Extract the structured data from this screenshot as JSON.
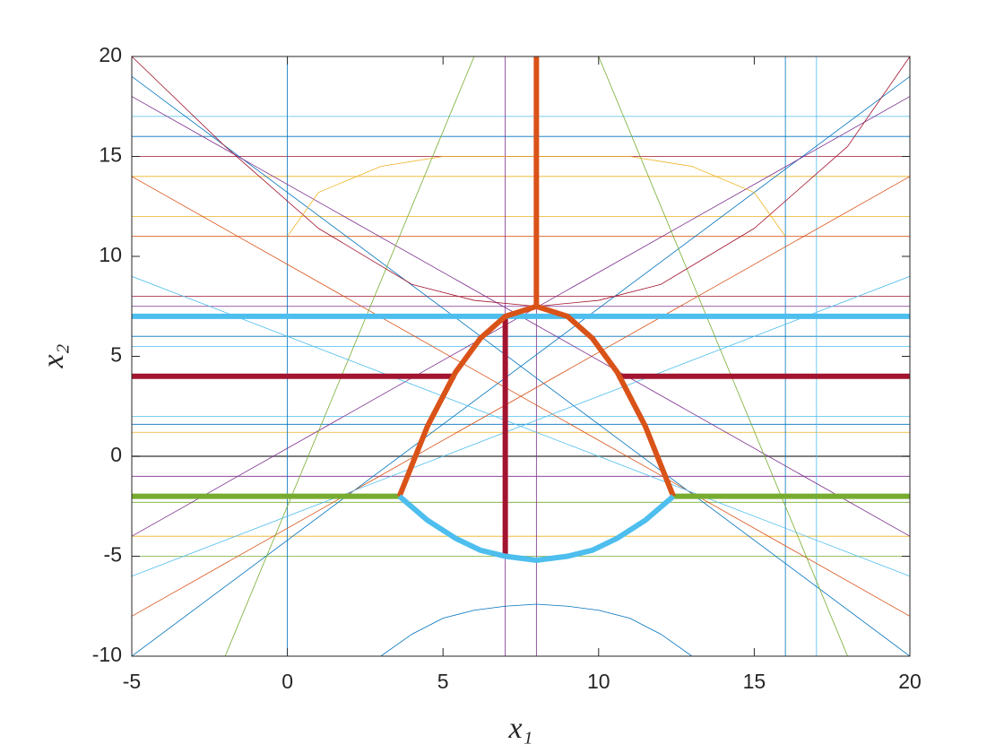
{
  "chart_data": {
    "type": "line",
    "xlabel": "x₁",
    "ylabel": "x₂",
    "xlim": [
      -5,
      20
    ],
    "ylim": [
      -10,
      20
    ],
    "xticks": [
      -5,
      0,
      5,
      10,
      15,
      20
    ],
    "yticks": [
      -10,
      -5,
      0,
      5,
      10,
      15,
      20
    ],
    "box": true,
    "series": [
      {
        "color": "#4dbeee",
        "linewidth": 0.8,
        "x": [
          -5,
          20
        ],
        "values": [
          17,
          17
        ]
      },
      {
        "color": "#0072bd",
        "linewidth": 0.8,
        "x": [
          -5,
          20
        ],
        "values": [
          16,
          16
        ]
      },
      {
        "color": "#a2142f",
        "linewidth": 0.8,
        "x": [
          -5,
          20
        ],
        "values": [
          15,
          15
        ]
      },
      {
        "color": "#edb120",
        "linewidth": 0.8,
        "x": [
          -5,
          20
        ],
        "values": [
          14,
          14
        ]
      },
      {
        "color": "#edb120",
        "linewidth": 0.8,
        "x": [
          -5,
          20
        ],
        "values": [
          12,
          12
        ]
      },
      {
        "color": "#d95319",
        "linewidth": 0.8,
        "x": [
          -5,
          20
        ],
        "values": [
          11,
          11
        ]
      },
      {
        "color": "#a2142f",
        "linewidth": 0.8,
        "x": [
          -5,
          20
        ],
        "values": [
          8,
          8
        ]
      },
      {
        "color": "#7e2f8e",
        "linewidth": 0.8,
        "x": [
          -5,
          20
        ],
        "values": [
          7.5,
          7.5
        ]
      },
      {
        "color": "#0072bd",
        "linewidth": 0.8,
        "x": [
          -5,
          20
        ],
        "values": [
          6,
          6
        ]
      },
      {
        "color": "#4dbeee",
        "linewidth": 0.8,
        "x": [
          -5,
          20
        ],
        "values": [
          5.5,
          5.5
        ]
      },
      {
        "color": "#4dbeee",
        "linewidth": 0.8,
        "x": [
          -5,
          20
        ],
        "values": [
          2,
          2
        ]
      },
      {
        "color": "#0072bd",
        "linewidth": 0.8,
        "x": [
          -5,
          20
        ],
        "values": [
          1.6,
          1.6
        ]
      },
      {
        "color": "#edb120",
        "linewidth": 0.8,
        "x": [
          -5,
          20
        ],
        "values": [
          1.2,
          1.2
        ]
      },
      {
        "color": "#555555",
        "linewidth": 1.5,
        "x": [
          -5,
          20
        ],
        "values": [
          0,
          0
        ]
      },
      {
        "color": "#7e2f8e",
        "linewidth": 0.8,
        "x": [
          -5,
          20
        ],
        "values": [
          -1,
          -1
        ]
      },
      {
        "color": "#77ac30",
        "linewidth": 0.8,
        "x": [
          -5,
          20
        ],
        "values": [
          -2.3,
          -2.3
        ]
      },
      {
        "color": "#edb120",
        "linewidth": 0.8,
        "x": [
          -5,
          20
        ],
        "values": [
          -4,
          -4
        ]
      },
      {
        "color": "#77ac30",
        "linewidth": 0.8,
        "x": [
          -5,
          20
        ],
        "values": [
          -5,
          -5
        ]
      },
      {
        "color": "#0072bd",
        "linewidth": 0.8,
        "x": [
          0,
          0
        ],
        "values": [
          -10,
          20
        ]
      },
      {
        "color": "#7e2f8e",
        "linewidth": 0.8,
        "x": [
          7,
          7
        ],
        "values": [
          -10,
          20
        ]
      },
      {
        "color": "#7e2f8e",
        "linewidth": 0.8,
        "x": [
          8,
          8
        ],
        "values": [
          -10,
          20
        ]
      },
      {
        "color": "#0072bd",
        "linewidth": 0.8,
        "x": [
          16,
          16
        ],
        "values": [
          -10,
          20
        ]
      },
      {
        "color": "#4dbeee",
        "linewidth": 0.8,
        "x": [
          17,
          17
        ],
        "values": [
          -10,
          20
        ]
      },
      {
        "color": "#0072bd",
        "linewidth": 0.8,
        "x": [
          -5,
          20
        ],
        "values": [
          19,
          -10
        ]
      },
      {
        "color": "#0072bd",
        "linewidth": 0.8,
        "x": [
          -5,
          20
        ],
        "values": [
          -10,
          19
        ]
      },
      {
        "color": "#d95319",
        "linewidth": 0.8,
        "x": [
          -5,
          20
        ],
        "values": [
          14,
          -8
        ]
      },
      {
        "color": "#d95319",
        "linewidth": 0.8,
        "x": [
          -5,
          20
        ],
        "values": [
          -8,
          14
        ]
      },
      {
        "color": "#7e2f8e",
        "linewidth": 0.8,
        "x": [
          -5,
          20
        ],
        "values": [
          18,
          -4
        ]
      },
      {
        "color": "#7e2f8e",
        "linewidth": 0.8,
        "x": [
          -5,
          20
        ],
        "values": [
          -4,
          18
        ]
      },
      {
        "color": "#77ac30",
        "linewidth": 0.8,
        "x": [
          -2,
          6
        ],
        "values": [
          -10,
          20
        ]
      },
      {
        "color": "#77ac30",
        "linewidth": 0.8,
        "x": [
          18,
          10
        ],
        "values": [
          -10,
          20
        ]
      },
      {
        "color": "#4dbeee",
        "linewidth": 0.8,
        "x": [
          -5,
          20
        ],
        "values": [
          9,
          -6
        ]
      },
      {
        "color": "#4dbeee",
        "linewidth": 0.8,
        "x": [
          -5,
          20
        ],
        "values": [
          -6,
          9
        ]
      },
      {
        "color": "#0072bd",
        "linewidth": 0.8,
        "x": [
          3,
          4,
          5,
          6,
          7,
          8,
          9,
          10,
          11,
          12,
          13
        ],
        "values": [
          -10,
          -8.9,
          -8.1,
          -7.7,
          -7.5,
          -7.4,
          -7.5,
          -7.7,
          -8.1,
          -8.9,
          -10
        ]
      },
      {
        "color": "#a2142f",
        "linewidth": 0.8,
        "x": [
          -5,
          -2,
          1,
          4,
          6,
          8,
          10,
          12,
          15,
          18,
          20
        ],
        "values": [
          20,
          15.5,
          11.4,
          8.6,
          7.8,
          7.5,
          7.8,
          8.6,
          11.4,
          15.5,
          20
        ]
      },
      {
        "color": "#edb120",
        "linewidth": 0.8,
        "x": [
          0,
          1,
          3,
          5,
          8,
          11,
          13,
          15,
          16
        ],
        "values": [
          11,
          13.2,
          14.5,
          15,
          15,
          15,
          14.5,
          13.2,
          11
        ]
      },
      {
        "color": "#a2142f",
        "linewidth": 6,
        "x": [
          7,
          7
        ],
        "values": [
          -5,
          7
        ]
      },
      {
        "color": "#4dbeee",
        "linewidth": 6,
        "x": [
          -5,
          20
        ],
        "values": [
          7,
          7
        ]
      },
      {
        "color": "#a2142f",
        "linewidth": 6,
        "x": [
          -5,
          5.4
        ],
        "values": [
          4,
          4
        ]
      },
      {
        "color": "#a2142f",
        "linewidth": 6,
        "x": [
          10.6,
          20
        ],
        "values": [
          4,
          4
        ]
      },
      {
        "color": "#77ac30",
        "linewidth": 6,
        "x": [
          -5,
          3.6
        ],
        "values": [
          -2,
          -2
        ]
      },
      {
        "color": "#77ac30",
        "linewidth": 6,
        "x": [
          12.4,
          20
        ],
        "values": [
          -2,
          -2
        ]
      },
      {
        "color": "#d95319",
        "linewidth": 6,
        "x": [
          8,
          8
        ],
        "values": [
          7.5,
          20
        ]
      },
      {
        "color": "#d95319",
        "linewidth": 6,
        "x": [
          3.6,
          4.5,
          5.4,
          6.2,
          7,
          8,
          9,
          9.8,
          10.6,
          11.5,
          12.4
        ],
        "values": [
          -2,
          1.5,
          4.2,
          5.9,
          7,
          7.5,
          7,
          5.9,
          4.2,
          1.5,
          -2
        ]
      },
      {
        "color": "#4dbeee",
        "linewidth": 6,
        "x": [
          3.6,
          4.5,
          5.4,
          6.2,
          7,
          8,
          9,
          9.8,
          10.6,
          11.5,
          12.4
        ],
        "values": [
          -2,
          -3.2,
          -4.1,
          -4.7,
          -5,
          -5.2,
          -5,
          -4.7,
          -4.1,
          -3.2,
          -2
        ]
      }
    ]
  }
}
